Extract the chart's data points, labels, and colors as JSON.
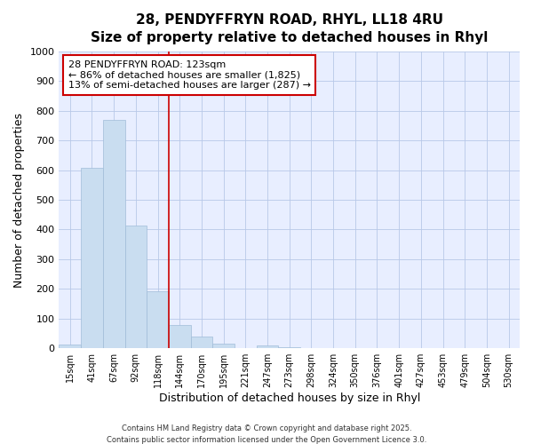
{
  "title_line1": "28, PENDYFFRYN ROAD, RHYL, LL18 4RU",
  "title_line2": "Size of property relative to detached houses in Rhyl",
  "xlabel": "Distribution of detached houses by size in Rhyl",
  "ylabel": "Number of detached properties",
  "categories": [
    "15sqm",
    "41sqm",
    "67sqm",
    "92sqm",
    "118sqm",
    "144sqm",
    "170sqm",
    "195sqm",
    "221sqm",
    "247sqm",
    "273sqm",
    "298sqm",
    "324sqm",
    "350sqm",
    "376sqm",
    "401sqm",
    "427sqm",
    "453sqm",
    "479sqm",
    "504sqm",
    "530sqm"
  ],
  "values": [
    12,
    607,
    770,
    412,
    193,
    78,
    40,
    16,
    2,
    10,
    3,
    2,
    0,
    0,
    0,
    0,
    0,
    0,
    0,
    0,
    0
  ],
  "bar_color": "#c9ddf0",
  "bar_edge_color": "#a0bcd8",
  "marker_color": "#cc0000",
  "annotation_text": "28 PENDYFFRYN ROAD: 123sqm\n← 86% of detached houses are smaller (1,825)\n13% of semi-detached houses are larger (287) →",
  "annotation_box_color": "white",
  "annotation_box_edge": "#cc0000",
  "ylim": [
    0,
    1000
  ],
  "yticks": [
    0,
    100,
    200,
    300,
    400,
    500,
    600,
    700,
    800,
    900,
    1000
  ],
  "footer1": "Contains HM Land Registry data © Crown copyright and database right 2025.",
  "footer2": "Contains public sector information licensed under the Open Government Licence 3.0.",
  "background_color": "#ffffff",
  "plot_bg_color": "#e8eeff",
  "grid_color": "#b8c8e8",
  "title_fontsize": 11,
  "subtitle_fontsize": 10
}
